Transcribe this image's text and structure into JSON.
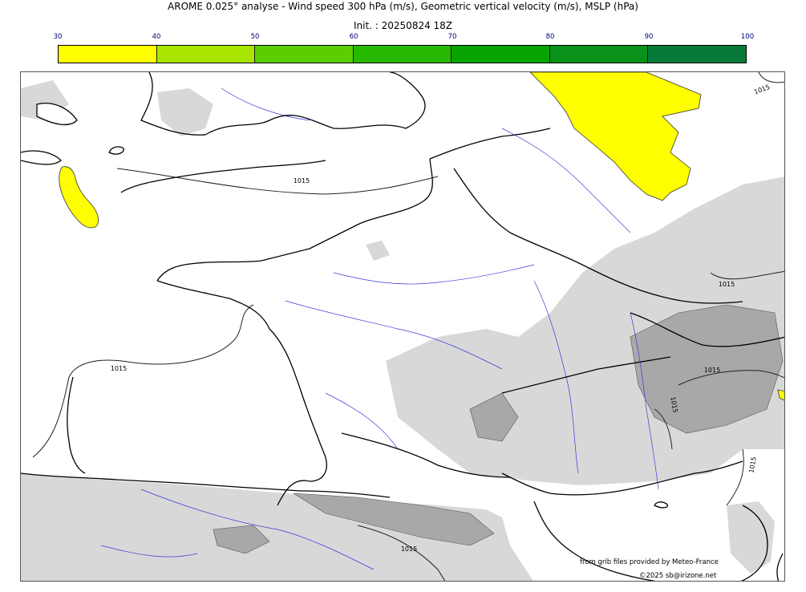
{
  "title": "AROME 0.025° analyse - Wind speed 300 hPa (m/s), Geometric vertical velocity (m/s), MSLP (hPa)",
  "init": "Init. : 20250824 18Z",
  "colorbar": {
    "ticks": [
      "30",
      "40",
      "50",
      "60",
      "70",
      "80",
      "90",
      "100"
    ],
    "colors": [
      "#ffff00",
      "#a8e600",
      "#5cce00",
      "#27b800",
      "#07a300",
      "#08921a",
      "#087a38",
      "#0b6f4a"
    ]
  },
  "isobar_labels": [
    "1015",
    "1015",
    "1015",
    "1015",
    "1015",
    "1015",
    "1015",
    "1015"
  ],
  "credits": {
    "source": "from grib files provided by Meteo-France",
    "copyright": "©2025 sb@irizone.net"
  },
  "colors": {
    "coastline": "#000000",
    "rivers": "#3a3ad8",
    "terrain": "#d8d8d8",
    "terrain_dark": "#a8a8a8",
    "jet_max": "#ffff00"
  }
}
